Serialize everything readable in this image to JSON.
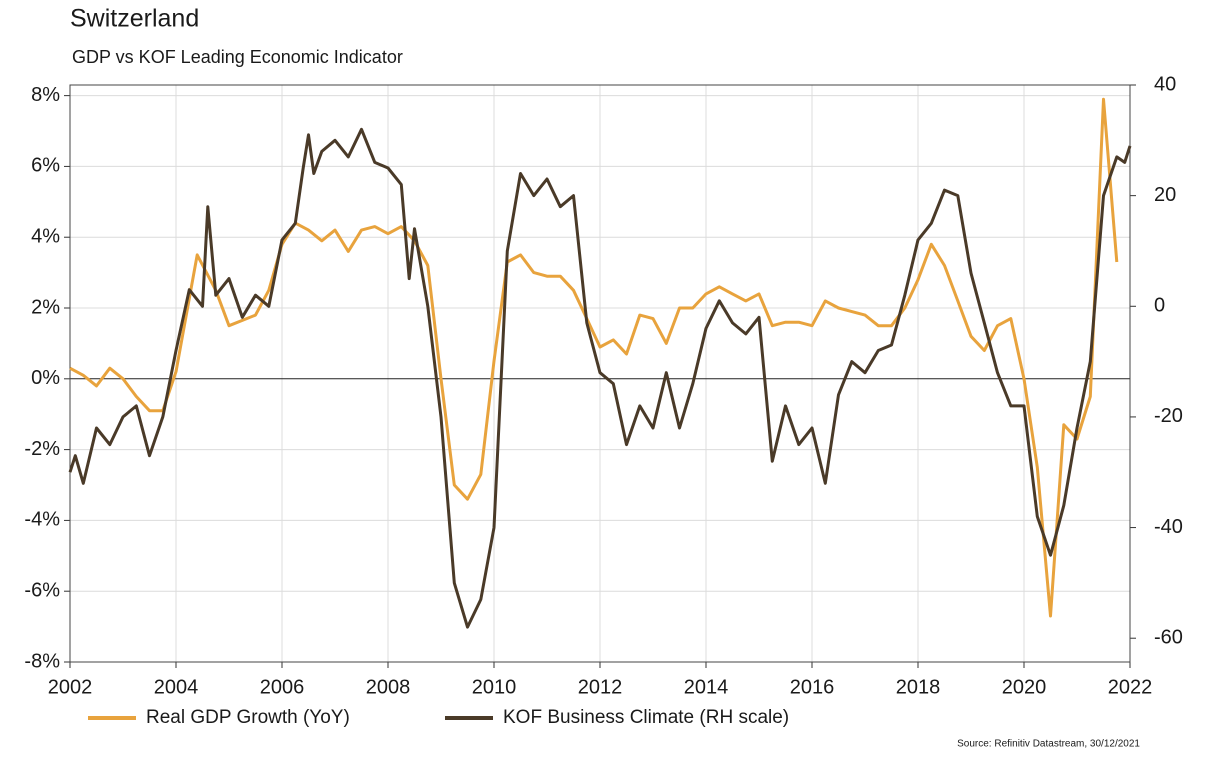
{
  "chart_data": {
    "type": "line",
    "title": "Switzerland",
    "subtitle": "GDP vs KOF Leading Economic Indicator",
    "source": "Source: Refinitiv Datastream, 30/12/2021",
    "xlim": [
      2002,
      2022
    ],
    "xticks": [
      2002,
      2004,
      2006,
      2008,
      2010,
      2012,
      2014,
      2016,
      2018,
      2020,
      2022
    ],
    "ylim": [
      -8,
      8.3
    ],
    "yticks": [
      {
        "value": -8,
        "label": "-8%"
      },
      {
        "value": -6,
        "label": "-6%"
      },
      {
        "value": -4,
        "label": "-4%"
      },
      {
        "value": -2,
        "label": "-2%"
      },
      {
        "value": 0,
        "label": "0%"
      },
      {
        "value": 2,
        "label": "2%"
      },
      {
        "value": 4,
        "label": "4%"
      },
      {
        "value": 6,
        "label": "6%"
      },
      {
        "value": 8,
        "label": "8%"
      }
    ],
    "y2lim": [
      -64.3,
      40
    ],
    "y2ticks": [
      -60,
      -40,
      -20,
      0,
      20,
      40
    ],
    "grid": true,
    "legend": "bottom",
    "series": [
      {
        "name": "Real GDP Growth (YoY)",
        "color": "#e8a33d",
        "x": [
          2002.0,
          2002.25,
          2002.5,
          2002.75,
          2003.0,
          2003.25,
          2003.5,
          2003.75,
          2004.0,
          2004.4,
          2004.75,
          2005.0,
          2005.5,
          2005.75,
          2006.0,
          2006.25,
          2006.5,
          2006.75,
          2007.0,
          2007.25,
          2007.5,
          2007.75,
          2008.0,
          2008.25,
          2008.5,
          2008.75,
          2009.0,
          2009.25,
          2009.5,
          2009.75,
          2010.0,
          2010.25,
          2010.5,
          2010.75,
          2011.0,
          2011.25,
          2011.5,
          2011.75,
          2012.0,
          2012.25,
          2012.5,
          2012.75,
          2013.0,
          2013.25,
          2013.5,
          2013.75,
          2014.0,
          2014.25,
          2014.5,
          2014.75,
          2015.0,
          2015.25,
          2015.5,
          2015.75,
          2016.0,
          2016.25,
          2016.5,
          2016.75,
          2017.0,
          2017.25,
          2017.5,
          2017.75,
          2018.0,
          2018.25,
          2018.5,
          2018.75,
          2019.0,
          2019.25,
          2019.5,
          2019.75,
          2020.0,
          2020.25,
          2020.5,
          2020.75,
          2021.0,
          2021.25,
          2021.5,
          2021.75
        ],
        "values": [
          0.3,
          0.1,
          -0.2,
          0.3,
          0,
          -0.5,
          -0.9,
          -0.9,
          0.2,
          3.5,
          2.5,
          1.5,
          1.8,
          2.5,
          3.8,
          4.4,
          4.2,
          3.9,
          4.2,
          3.6,
          4.2,
          4.3,
          4.1,
          4.3,
          3.9,
          3.2,
          0,
          -3.0,
          -3.4,
          -2.7,
          0.5,
          3.3,
          3.5,
          3.0,
          2.9,
          2.9,
          2.5,
          1.7,
          0.9,
          1.1,
          0.7,
          1.8,
          1.7,
          1.0,
          2.0,
          2.0,
          2.4,
          2.6,
          2.4,
          2.2,
          2.4,
          1.5,
          1.6,
          1.6,
          1.5,
          2.2,
          2.0,
          1.9,
          1.8,
          1.5,
          1.5,
          2.0,
          2.8,
          3.8,
          3.2,
          2.2,
          1.2,
          0.8,
          1.5,
          1.7,
          0,
          -2.5,
          -6.7,
          -1.3,
          -1.7,
          -0.5,
          7.9,
          3.3
        ]
      },
      {
        "name": "KOF Business Climate (RH scale)",
        "color": "#4a3a28",
        "axis": "y2",
        "x": [
          2002.0,
          2002.1,
          2002.25,
          2002.5,
          2002.75,
          2003.0,
          2003.25,
          2003.5,
          2003.75,
          2004.0,
          2004.25,
          2004.5,
          2004.6,
          2004.75,
          2005.0,
          2005.25,
          2005.5,
          2005.75,
          2006.0,
          2006.25,
          2006.4,
          2006.5,
          2006.6,
          2006.75,
          2007.0,
          2007.25,
          2007.5,
          2007.75,
          2008.0,
          2008.25,
          2008.4,
          2008.5,
          2008.75,
          2009.0,
          2009.25,
          2009.5,
          2009.75,
          2010.0,
          2010.25,
          2010.5,
          2010.75,
          2011.0,
          2011.25,
          2011.5,
          2011.75,
          2012.0,
          2012.25,
          2012.5,
          2012.75,
          2013.0,
          2013.25,
          2013.5,
          2013.75,
          2014.0,
          2014.25,
          2014.5,
          2014.75,
          2015.0,
          2015.25,
          2015.5,
          2015.75,
          2016.0,
          2016.25,
          2016.5,
          2016.75,
          2017.0,
          2017.25,
          2017.5,
          2017.75,
          2018.0,
          2018.25,
          2018.5,
          2018.75,
          2019.0,
          2019.25,
          2019.5,
          2019.75,
          2020.0,
          2020.25,
          2020.5,
          2020.75,
          2021.0,
          2021.25,
          2021.5,
          2021.75,
          2021.9,
          2022.0
        ],
        "values": [
          -30,
          -27,
          -32,
          -22,
          -25,
          -20,
          -18,
          -27,
          -20,
          -8,
          3,
          0,
          18,
          2,
          5,
          -2,
          2,
          0,
          12,
          15,
          25,
          31,
          24,
          28,
          30,
          27,
          32,
          26,
          25,
          22,
          5,
          14,
          0,
          -20,
          -50,
          -58,
          -53,
          -40,
          10,
          24,
          20,
          23,
          18,
          20,
          -3,
          -12,
          -14,
          -25,
          -18,
          -22,
          -12,
          -22,
          -14,
          -4,
          1,
          -3,
          -5,
          -2,
          -28,
          -18,
          -25,
          -22,
          -32,
          -16,
          -10,
          -12,
          -8,
          -7,
          2,
          12,
          15,
          21,
          20,
          6,
          -3,
          -12,
          -18,
          -18,
          -38,
          -45,
          -36,
          -22,
          -10,
          20,
          27,
          26,
          29
        ]
      }
    ]
  }
}
